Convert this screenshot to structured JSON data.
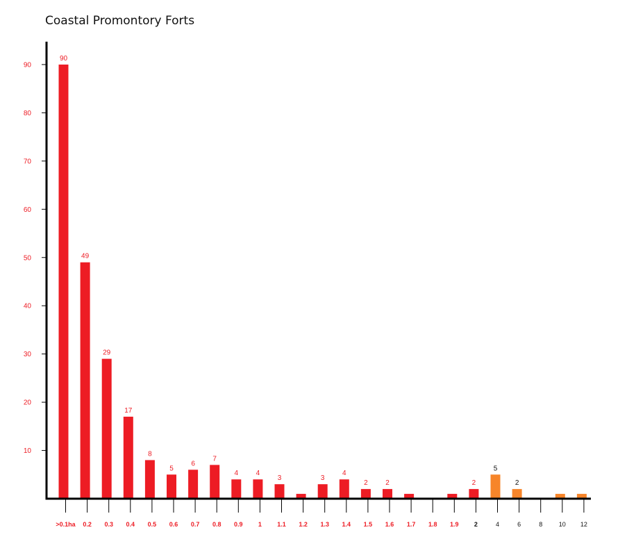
{
  "chart_data": {
    "type": "bar",
    "title": "Coastal Promontory Forts",
    "xlabel": "",
    "ylabel": "",
    "ylim": [
      0,
      95
    ],
    "yticks": [
      10,
      20,
      30,
      40,
      50,
      60,
      70,
      80,
      90
    ],
    "categories": [
      ">0.1ha",
      "0.2",
      "0.3",
      "0.4",
      "0.5",
      "0.6",
      "0.7",
      "0.8",
      "0.9",
      "1",
      "1.1",
      "1.2",
      "1.3",
      "1.4",
      "1.5",
      "1.6",
      "1.7",
      "1.8",
      "1.9",
      "2",
      "4",
      "6",
      "8",
      "10",
      "12"
    ],
    "values": [
      90,
      49,
      29,
      17,
      8,
      5,
      6,
      7,
      4,
      4,
      3,
      1,
      3,
      4,
      2,
      2,
      1,
      0,
      1,
      2,
      5,
      2,
      0,
      1,
      1
    ],
    "data_labels": [
      "90",
      "49",
      "29",
      "17",
      "8",
      "5",
      "6",
      "7",
      "4",
      "4",
      "3",
      "",
      "3",
      "4",
      "2",
      "2",
      "",
      "",
      "",
      "2",
      "5",
      "2",
      "",
      "",
      ""
    ],
    "grid": false,
    "legend": "none",
    "colors": {
      "primary_bar": "#ed1c24",
      "secondary_bar": "#f7852a",
      "primary_text": "#ed1c24",
      "secondary_text": "#111111",
      "axis": "#000000"
    },
    "secondary_from_index": 20
  }
}
